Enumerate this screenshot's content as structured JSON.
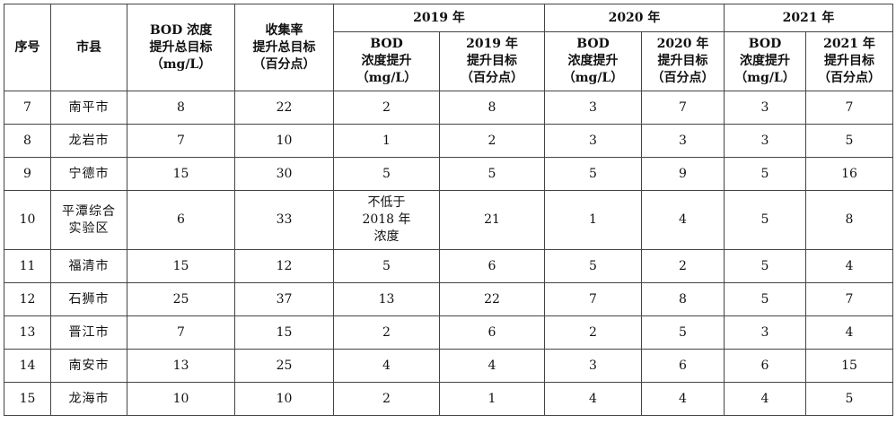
{
  "headers": {
    "seq": "序号",
    "city": "市县",
    "bod_target": "BOD 浓度\n提升总目标\n（mg/L）",
    "collect_target": "收集率\n提升总目标\n（百分点）",
    "years": [
      {
        "year": "2019 年",
        "bod": "BOD\n浓度提升\n（mg/L）",
        "rate": "2019 年\n提升目标\n（百分点）"
      },
      {
        "year": "2020 年",
        "bod": "BOD\n浓度提升\n（mg/L）",
        "rate": "2020 年\n提升目标\n（百分点）"
      },
      {
        "year": "2021 年",
        "bod": "BOD\n浓度提升\n（mg/L）",
        "rate": "2021 年\n提升目标\n（百分点）"
      }
    ]
  },
  "rows": [
    {
      "seq": "7",
      "city": "南平市",
      "bod_total": "8",
      "rate_total": "22",
      "y2019_bod": "2",
      "y2019_rate": "8",
      "y2020_bod": "3",
      "y2020_rate": "7",
      "y2021_bod": "3",
      "y2021_rate": "7"
    },
    {
      "seq": "8",
      "city": "龙岩市",
      "bod_total": "7",
      "rate_total": "10",
      "y2019_bod": "1",
      "y2019_rate": "2",
      "y2020_bod": "3",
      "y2020_rate": "3",
      "y2021_bod": "3",
      "y2021_rate": "5"
    },
    {
      "seq": "9",
      "city": "宁德市",
      "bod_total": "15",
      "rate_total": "30",
      "y2019_bod": "5",
      "y2019_rate": "5",
      "y2020_bod": "5",
      "y2020_rate": "9",
      "y2021_bod": "5",
      "y2021_rate": "16"
    },
    {
      "seq": "10",
      "city": "平潭综合\n实验区",
      "bod_total": "6",
      "rate_total": "33",
      "y2019_bod": "不低于\n2018 年\n浓度",
      "y2019_rate": "21",
      "y2020_bod": "1",
      "y2020_rate": "4",
      "y2021_bod": "5",
      "y2021_rate": "8"
    },
    {
      "seq": "11",
      "city": "福清市",
      "bod_total": "15",
      "rate_total": "12",
      "y2019_bod": "5",
      "y2019_rate": "6",
      "y2020_bod": "5",
      "y2020_rate": "2",
      "y2021_bod": "5",
      "y2021_rate": "4"
    },
    {
      "seq": "12",
      "city": "石狮市",
      "bod_total": "25",
      "rate_total": "37",
      "y2019_bod": "13",
      "y2019_rate": "22",
      "y2020_bod": "7",
      "y2020_rate": "8",
      "y2021_bod": "5",
      "y2021_rate": "7"
    },
    {
      "seq": "13",
      "city": "晋江市",
      "bod_total": "7",
      "rate_total": "15",
      "y2019_bod": "2",
      "y2019_rate": "6",
      "y2020_bod": "2",
      "y2020_rate": "5",
      "y2021_bod": "3",
      "y2021_rate": "4"
    },
    {
      "seq": "14",
      "city": "南安市",
      "bod_total": "13",
      "rate_total": "25",
      "y2019_bod": "4",
      "y2019_rate": "4",
      "y2020_bod": "3",
      "y2020_rate": "6",
      "y2021_bod": "6",
      "y2021_rate": "15"
    },
    {
      "seq": "15",
      "city": "龙海市",
      "bod_total": "10",
      "rate_total": "10",
      "y2019_bod": "2",
      "y2019_rate": "1",
      "y2020_bod": "4",
      "y2020_rate": "4",
      "y2021_bod": "4",
      "y2021_rate": "5"
    }
  ]
}
